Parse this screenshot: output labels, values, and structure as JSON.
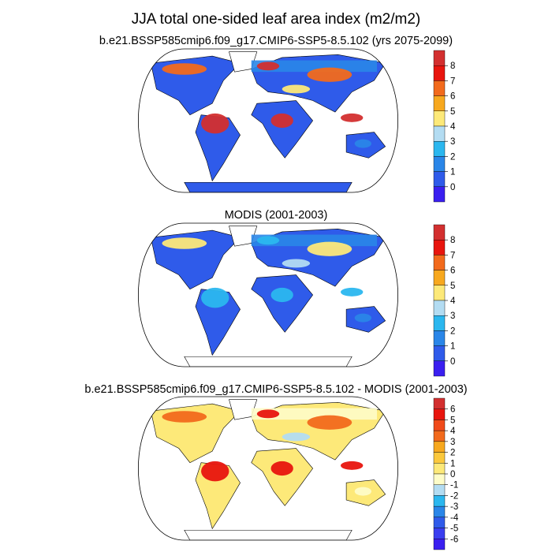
{
  "figure": {
    "title": "JJA total one-sided leaf area index (m2/m2)"
  },
  "panels": [
    {
      "title": "b.e21.BSSP585cmip6.f09_g17.CMIP6-SSP5-8.5.102 (yrs 2075-2099)",
      "colorbar": {
        "labels": [
          "8",
          "7",
          "6",
          "5",
          "4",
          "3",
          "2",
          "1",
          "0"
        ],
        "colors": [
          "#d32f2f",
          "#e8150e",
          "#f26a1c",
          "#f7a81e",
          "#fde979",
          "#b3dcf2",
          "#2bb7ef",
          "#2a86e8",
          "#2f5bea",
          "#3a1ff0"
        ]
      },
      "fills": {
        "ocean": "#ffffff",
        "low": "#2f5bea",
        "mid": "#2a86e8",
        "high": "#d32f2f",
        "warm": "#f26a1c",
        "yellow": "#fde979"
      }
    },
    {
      "title": "MODIS (2001-2003)",
      "colorbar": {
        "labels": [
          "8",
          "7",
          "6",
          "5",
          "4",
          "3",
          "2",
          "1",
          "0"
        ],
        "colors": [
          "#d32f2f",
          "#e8150e",
          "#f26a1c",
          "#f7a81e",
          "#fde979",
          "#b3dcf2",
          "#2bb7ef",
          "#2a86e8",
          "#2f5bea",
          "#3a1ff0"
        ]
      },
      "fills": {
        "ocean": "#ffffff",
        "low": "#2f5bea",
        "mid": "#2a86e8",
        "high": "#2bb7ef",
        "warm": "#fde979",
        "yellow": "#b3dcf2"
      }
    },
    {
      "title": "b.e21.BSSP585cmip6.f09_g17.CMIP6-SSP5-8.5.102 - MODIS (2001-2003)",
      "colorbar": {
        "labels": [
          "6",
          "5",
          "4",
          "3",
          "2",
          "1",
          "0",
          "-1",
          "-2",
          "-3",
          "-4",
          "-5",
          "-6"
        ],
        "colors": [
          "#d32f2f",
          "#e8150e",
          "#f04a1a",
          "#f26a1c",
          "#f7a81e",
          "#fbc83c",
          "#fde979",
          "#fefcc8",
          "#b3dcf2",
          "#2bb7ef",
          "#2a86e8",
          "#2f5bea",
          "#3a3ef0",
          "#3a1ff0"
        ]
      },
      "fills": {
        "ocean": "#ffffff",
        "low": "#fde979",
        "mid": "#fefcc8",
        "high": "#e8150e",
        "warm": "#f26a1c",
        "yellow": "#b3dcf2"
      }
    }
  ]
}
